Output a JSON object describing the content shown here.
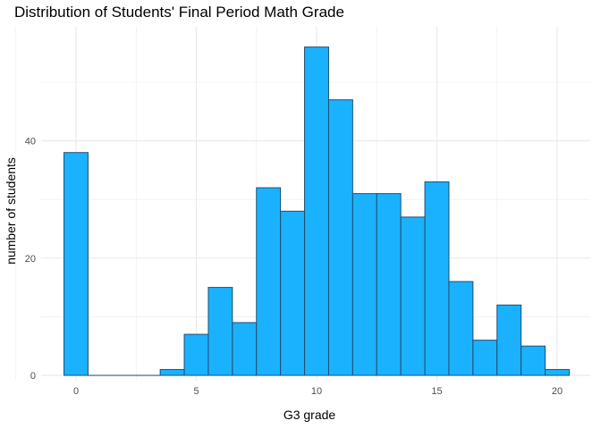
{
  "chart_data": {
    "type": "bar",
    "title": "Distribution of Students' Final Period Math Grade",
    "xlabel": "G3 grade",
    "ylabel": "number of students",
    "x": [
      0,
      1,
      2,
      3,
      4,
      5,
      6,
      7,
      8,
      9,
      10,
      11,
      12,
      13,
      14,
      15,
      16,
      17,
      18,
      19,
      20
    ],
    "values": [
      38,
      0,
      0,
      0,
      1,
      7,
      15,
      9,
      32,
      28,
      56,
      47,
      31,
      31,
      27,
      33,
      16,
      6,
      12,
      5,
      1
    ],
    "xlim": [
      -1.5,
      21.5
    ],
    "ylim": [
      0,
      60
    ],
    "xticks": [
      0,
      5,
      10,
      15,
      20
    ],
    "yticks": [
      0,
      20,
      40
    ],
    "grid": true,
    "bar_color": "#1AB2FF",
    "bar_outline": "#1F4E6E",
    "grid_color": "#EBEBEB"
  }
}
